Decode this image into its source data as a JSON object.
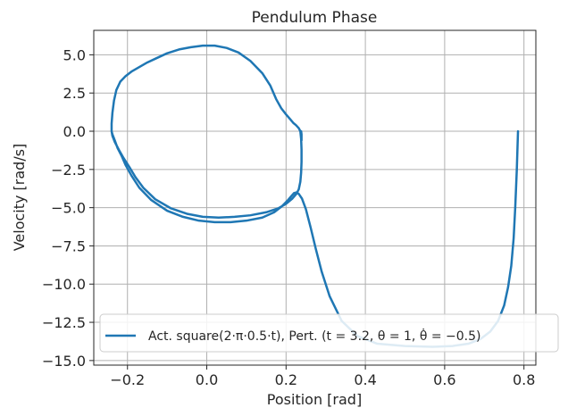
{
  "chart_data": {
    "type": "line",
    "title": "Pendulum Phase",
    "xlabel": "Position [rad]",
    "ylabel": "Velocity [rad/s]",
    "xlim": [
      -0.285,
      0.83
    ],
    "ylim": [
      -15.3,
      6.6
    ],
    "xticks": [
      -0.2,
      0.0,
      0.2,
      0.4,
      0.6,
      0.8
    ],
    "xtick_labels": [
      "−0.2",
      "0.0",
      "0.2",
      "0.4",
      "0.6",
      "0.8"
    ],
    "yticks": [
      5.0,
      2.5,
      0.0,
      -2.5,
      -5.0,
      -7.5,
      -10.0,
      -12.5,
      -15.0
    ],
    "ytick_labels": [
      "5.0",
      "2.5",
      "0.0",
      "−2.5",
      "−5.0",
      "−7.5",
      "−10.0",
      "−12.5",
      "−15.0"
    ],
    "grid": true,
    "legend_position": "bottom-right",
    "series": [
      {
        "name": "Act. square(2·π·0.5·t), Pert. (t = 3.2, θ = 1, θ̇ = −0.5)",
        "color": "#1f77b4",
        "x": [
          0.785,
          0.782,
          0.778,
          0.774,
          0.768,
          0.76,
          0.75,
          0.735,
          0.715,
          0.69,
          0.66,
          0.62,
          0.57,
          0.5,
          0.43,
          0.38,
          0.34,
          0.31,
          0.29,
          0.275,
          0.262,
          0.25,
          0.24,
          0.232,
          0.226,
          0.22,
          0.213,
          0.205,
          0.19,
          0.17,
          0.14,
          0.1,
          0.06,
          0.02,
          -0.02,
          -0.06,
          -0.1,
          -0.14,
          -0.17,
          -0.19,
          -0.205,
          -0.215,
          -0.225,
          -0.232,
          -0.238,
          -0.24,
          -0.24,
          -0.238,
          -0.234,
          -0.228,
          -0.218,
          -0.205,
          -0.19,
          -0.17,
          -0.15,
          -0.125,
          -0.1,
          -0.07,
          -0.04,
          -0.01,
          0.02,
          0.05,
          0.08,
          0.11,
          0.14,
          0.16,
          0.175,
          0.188,
          0.2,
          0.21,
          0.218,
          0.225,
          0.232,
          0.236,
          0.238,
          0.239,
          0.239,
          0.238,
          0.236,
          0.232,
          0.226,
          0.216,
          0.2,
          0.18,
          0.15,
          0.11,
          0.07,
          0.03,
          -0.01,
          -0.05,
          -0.09,
          -0.13,
          -0.16,
          -0.18,
          -0.195,
          -0.21,
          -0.222,
          -0.232,
          -0.238,
          -0.24,
          -0.24,
          -0.238,
          -0.234,
          -0.228,
          -0.218,
          -0.205,
          -0.19,
          -0.17,
          -0.15,
          -0.125,
          -0.1,
          -0.07,
          -0.04,
          -0.01,
          0.02,
          0.05,
          0.08,
          0.11,
          0.14,
          0.16,
          0.175,
          0.188,
          0.2,
          0.21,
          0.218,
          0.225,
          0.232,
          0.236,
          0.238,
          0.239,
          0.239,
          0.238
        ],
        "y": [
          0.0,
          -2.5,
          -5.0,
          -7.0,
          -8.8,
          -10.2,
          -11.4,
          -12.4,
          -13.1,
          -13.6,
          -13.9,
          -14.05,
          -14.1,
          -14.05,
          -13.9,
          -13.4,
          -12.4,
          -10.8,
          -9.2,
          -7.7,
          -6.3,
          -5.1,
          -4.4,
          -4.1,
          -4.0,
          -4.05,
          -4.25,
          -4.5,
          -4.9,
          -5.3,
          -5.65,
          -5.85,
          -5.95,
          -5.95,
          -5.85,
          -5.6,
          -5.2,
          -4.5,
          -3.7,
          -2.9,
          -2.2,
          -1.6,
          -1.1,
          -0.6,
          -0.2,
          0.0,
          0.5,
          1.2,
          2.0,
          2.7,
          3.25,
          3.6,
          3.9,
          4.2,
          4.5,
          4.8,
          5.1,
          5.35,
          5.5,
          5.6,
          5.6,
          5.45,
          5.15,
          4.6,
          3.8,
          3.0,
          2.1,
          1.5,
          1.1,
          0.8,
          0.55,
          0.4,
          0.2,
          0.0,
          -0.5,
          -1.2,
          -2.0,
          -2.7,
          -3.3,
          -3.8,
          -4.1,
          -4.4,
          -4.75,
          -5.05,
          -5.3,
          -5.5,
          -5.6,
          -5.65,
          -5.6,
          -5.4,
          -5.05,
          -4.45,
          -3.7,
          -3.0,
          -2.35,
          -1.75,
          -1.2,
          -0.7,
          -0.3,
          0.0,
          0.5,
          1.2,
          2.0,
          2.7,
          3.25,
          3.6,
          3.9,
          4.2,
          4.5,
          4.8,
          5.1,
          5.35,
          5.5,
          5.6,
          5.6,
          5.45,
          5.15,
          4.6,
          3.8,
          3.0,
          2.1,
          1.5,
          1.1,
          0.8,
          0.55,
          0.4,
          0.2,
          0.0,
          -0.4,
          -0.6,
          -0.2,
          0.0
        ]
      }
    ]
  }
}
